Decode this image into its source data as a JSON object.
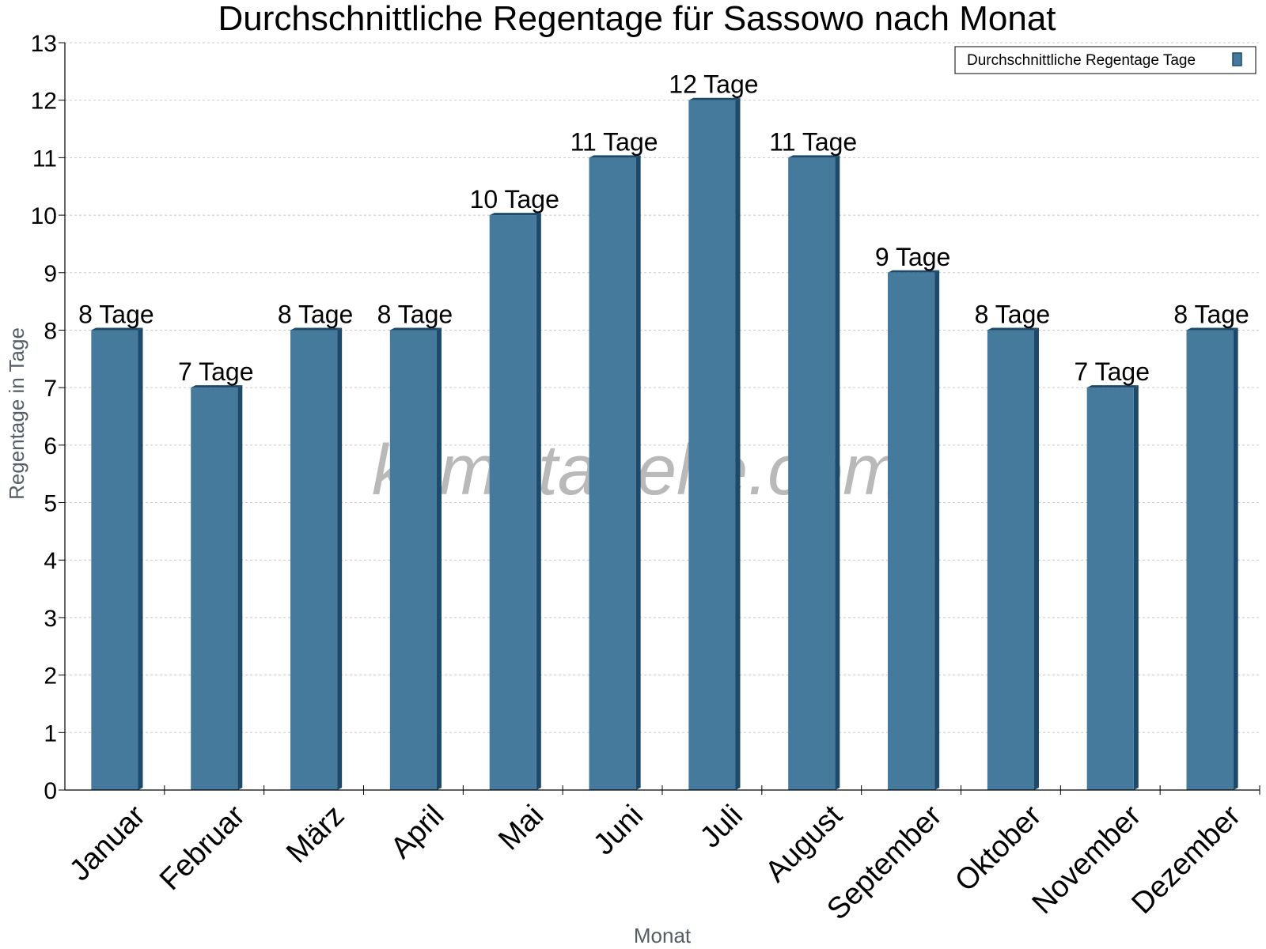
{
  "chart_data": {
    "type": "bar",
    "title": "Durchschnittliche Regentage für Sassowo nach Monat",
    "xlabel": "Monat",
    "ylabel": "Regentage in Tage",
    "categories": [
      "Januar",
      "Februar",
      "März",
      "April",
      "Mai",
      "Juni",
      "Juli",
      "August",
      "September",
      "Oktober",
      "November",
      "Dezember"
    ],
    "series": [
      {
        "name": "Durchschnittliche Regentage Tage",
        "values": [
          8,
          7,
          8,
          8,
          10,
          11,
          12,
          11,
          9,
          8,
          7,
          8
        ],
        "color": "#467a9c",
        "labels": [
          "8 Tage",
          "7 Tage",
          "8 Tage",
          "8 Tage",
          "10 Tage",
          "11 Tage",
          "12 Tage",
          "11 Tage",
          "9 Tage",
          "8 Tage",
          "7 Tage",
          "8 Tage"
        ]
      }
    ],
    "ylim": [
      0,
      13
    ],
    "yticks": [
      0,
      1,
      2,
      3,
      4,
      5,
      6,
      7,
      8,
      9,
      10,
      11,
      12,
      13
    ],
    "grid": true,
    "legend_position": "top-right"
  },
  "watermark": "klimatabelle.com",
  "colors": {
    "bar": "#467a9c",
    "bar_side": "#1d4a6a",
    "grid": "#c8c8c8"
  }
}
